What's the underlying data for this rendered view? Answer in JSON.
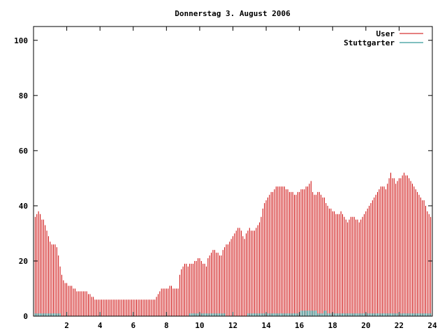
{
  "chart_data": {
    "type": "bar",
    "title": "Donnerstag 3. August 2006",
    "xlabel": "",
    "ylabel": "",
    "xlim": [
      0,
      24
    ],
    "ylim": [
      0,
      105
    ],
    "x_ticks": [
      "2",
      "4",
      "6",
      "8",
      "10",
      "12",
      "14",
      "16",
      "18",
      "20",
      "22",
      "24"
    ],
    "y_ticks": [
      "0",
      "20",
      "40",
      "60",
      "80",
      "100"
    ],
    "grid": false,
    "legend_position": "top-right",
    "sample_interval_hours": 0.1,
    "series": [
      {
        "name": "User",
        "color": "#cc0000",
        "values": [
          36,
          37,
          38,
          37,
          35,
          35,
          33,
          31,
          29,
          27,
          26,
          26,
          26,
          25,
          22,
          18,
          15,
          13,
          12,
          12,
          11,
          11,
          11,
          10,
          10,
          9,
          9,
          9,
          9,
          9,
          9,
          9,
          8,
          8,
          7,
          7,
          6,
          6,
          6,
          6,
          6,
          6,
          6,
          6,
          6,
          6,
          6,
          6,
          6,
          6,
          6,
          6,
          6,
          6,
          6,
          6,
          6,
          6,
          6,
          6,
          6,
          6,
          6,
          6,
          6,
          6,
          6,
          6,
          6,
          6,
          6,
          6,
          6,
          7,
          8,
          9,
          10,
          10,
          10,
          10,
          10,
          11,
          11,
          10,
          10,
          10,
          10,
          15,
          17,
          18,
          19,
          19,
          18,
          19,
          19,
          19,
          20,
          20,
          21,
          21,
          20,
          19,
          19,
          18,
          21,
          22,
          23,
          24,
          24,
          23,
          23,
          22,
          22,
          24,
          25,
          26,
          26,
          27,
          28,
          29,
          30,
          31,
          32,
          32,
          31,
          29,
          28,
          30,
          31,
          32,
          31,
          31,
          31,
          32,
          33,
          34,
          36,
          39,
          41,
          42,
          43,
          44,
          45,
          45,
          46,
          47,
          47,
          47,
          47,
          47,
          47,
          46,
          46,
          45,
          45,
          45,
          44,
          44,
          45,
          45,
          46,
          46,
          46,
          47,
          47,
          48,
          49,
          45,
          44,
          44,
          45,
          45,
          44,
          43,
          43,
          41,
          40,
          39,
          39,
          38,
          38,
          37,
          37,
          37,
          38,
          37,
          36,
          35,
          34,
          35,
          36,
          36,
          36,
          35,
          35,
          34,
          35,
          36,
          37,
          38,
          39,
          40,
          41,
          42,
          43,
          44,
          45,
          46,
          47,
          47,
          47,
          46,
          48,
          50,
          52,
          50,
          50,
          48,
          49,
          50,
          50,
          51,
          52,
          51,
          51,
          50,
          49,
          48,
          47,
          46,
          45,
          44,
          43,
          42,
          42,
          40,
          38,
          37,
          36,
          36,
          36,
          35,
          35
        ]
      },
      {
        "name": "Stuttgarter",
        "color": "#008080",
        "values": [
          1,
          1,
          1,
          1,
          1,
          1,
          1,
          1,
          1,
          1,
          1,
          1,
          1,
          1,
          1,
          1,
          0,
          0,
          0,
          0,
          0,
          0,
          0,
          0,
          0,
          0,
          0,
          0,
          0,
          0,
          0,
          0,
          0,
          0,
          0,
          0,
          0,
          0,
          0,
          0,
          0,
          0,
          0,
          0,
          0,
          0,
          0,
          0,
          0,
          0,
          0,
          0,
          0,
          0,
          0,
          0,
          0,
          0,
          0,
          0,
          0,
          0,
          0,
          0,
          0,
          0,
          0,
          0,
          0,
          0,
          0,
          0,
          0,
          0,
          0,
          0,
          0,
          0,
          0,
          0,
          0,
          0,
          0,
          0,
          0,
          0,
          0,
          0,
          0,
          0,
          0,
          0,
          0,
          1,
          1,
          1,
          1,
          1,
          1,
          1,
          1,
          1,
          1,
          1,
          1,
          1,
          1,
          1,
          1,
          1,
          1,
          1,
          1,
          1,
          1,
          0,
          0,
          0,
          0,
          0,
          0,
          0,
          0,
          0,
          0,
          0,
          0,
          0,
          1,
          1,
          1,
          1,
          1,
          1,
          1,
          1,
          1,
          1,
          1,
          1,
          1,
          1,
          1,
          1,
          1,
          1,
          1,
          1,
          1,
          1,
          1,
          1,
          1,
          1,
          1,
          1,
          1,
          1,
          1,
          1,
          2,
          2,
          2,
          2,
          2,
          2,
          2,
          2,
          2,
          2,
          1,
          1,
          1,
          1,
          2,
          2,
          1,
          1,
          1,
          1,
          1,
          1,
          1,
          1,
          1,
          1,
          1,
          1,
          1,
          1,
          1,
          1,
          1,
          1,
          1,
          1,
          1,
          1,
          1,
          1,
          1,
          1,
          1,
          1,
          1,
          1,
          1,
          1,
          1,
          1,
          1,
          1,
          1,
          1,
          1,
          1,
          1,
          1,
          1,
          1,
          1,
          1,
          1,
          1,
          1,
          1,
          1,
          1,
          1,
          1,
          1,
          1,
          1,
          1,
          1,
          1,
          1,
          1,
          1,
          1,
          1,
          1,
          1,
          1,
          1,
          1,
          1
        ]
      }
    ]
  }
}
